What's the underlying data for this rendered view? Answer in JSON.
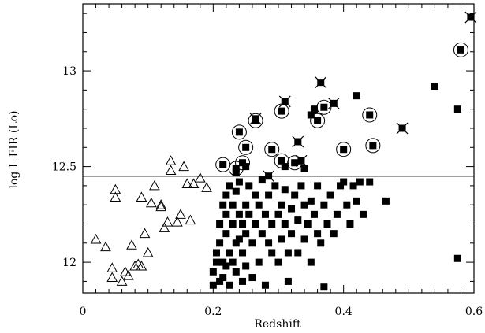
{
  "chart_data": {
    "type": "scatter",
    "xlabel": "Redshift",
    "ylabel": "log L FIR (Lo)",
    "xlim": [
      0,
      0.6
    ],
    "ylim": [
      11.84,
      13.35
    ],
    "x_ticks": [
      0,
      0.2,
      0.4,
      0.6
    ],
    "x_tick_labels": [
      "0",
      "0.2",
      "0.4",
      "0.6"
    ],
    "y_ticks": [
      12,
      12.5,
      13
    ],
    "y_tick_labels": [
      "12",
      "12.5",
      "13"
    ],
    "threshold_line": 12.45,
    "grid": false,
    "legend": "none",
    "series": [
      {
        "marker": "open-triangle",
        "points": [
          [
            0.02,
            12.12
          ],
          [
            0.035,
            12.08
          ],
          [
            0.045,
            11.97
          ],
          [
            0.045,
            11.92
          ],
          [
            0.05,
            12.34
          ],
          [
            0.05,
            12.38
          ],
          [
            0.06,
            11.9
          ],
          [
            0.065,
            11.95
          ],
          [
            0.07,
            11.93
          ],
          [
            0.075,
            12.09
          ],
          [
            0.08,
            11.98
          ],
          [
            0.085,
            11.99
          ],
          [
            0.09,
            11.98
          ],
          [
            0.09,
            12.34
          ],
          [
            0.095,
            12.15
          ],
          [
            0.1,
            12.05
          ],
          [
            0.105,
            12.31
          ],
          [
            0.11,
            12.4
          ],
          [
            0.12,
            12.3
          ],
          [
            0.12,
            12.29
          ],
          [
            0.125,
            12.18
          ],
          [
            0.13,
            12.21
          ],
          [
            0.135,
            12.53
          ],
          [
            0.135,
            12.48
          ],
          [
            0.145,
            12.21
          ],
          [
            0.15,
            12.25
          ],
          [
            0.155,
            12.5
          ],
          [
            0.16,
            12.41
          ],
          [
            0.165,
            12.22
          ],
          [
            0.17,
            12.41
          ],
          [
            0.18,
            12.44
          ],
          [
            0.19,
            12.39
          ]
        ]
      },
      {
        "marker": "filled-square",
        "points": [
          [
            0.2,
            11.88
          ],
          [
            0.2,
            11.95
          ],
          [
            0.205,
            12.0
          ],
          [
            0.205,
            12.05
          ],
          [
            0.21,
            11.9
          ],
          [
            0.21,
            12.1
          ],
          [
            0.21,
            12.2
          ],
          [
            0.215,
            12.3
          ],
          [
            0.215,
            12.0
          ],
          [
            0.215,
            11.92
          ],
          [
            0.22,
            12.15
          ],
          [
            0.22,
            12.25
          ],
          [
            0.22,
            12.35
          ],
          [
            0.22,
            11.98
          ],
          [
            0.225,
            12.4
          ],
          [
            0.225,
            12.05
          ],
          [
            0.225,
            11.88
          ],
          [
            0.23,
            12.2
          ],
          [
            0.23,
            12.3
          ],
          [
            0.23,
            12.0
          ],
          [
            0.235,
            11.95
          ],
          [
            0.235,
            12.1
          ],
          [
            0.235,
            12.37
          ],
          [
            0.24,
            12.25
          ],
          [
            0.24,
            12.12
          ],
          [
            0.24,
            12.42
          ],
          [
            0.245,
            12.2
          ],
          [
            0.245,
            11.9
          ],
          [
            0.245,
            12.05
          ],
          [
            0.25,
            12.3
          ],
          [
            0.25,
            12.15
          ],
          [
            0.25,
            11.98
          ],
          [
            0.255,
            12.25
          ],
          [
            0.255,
            12.4
          ],
          [
            0.26,
            12.1
          ],
          [
            0.26,
            11.92
          ],
          [
            0.265,
            12.2
          ],
          [
            0.265,
            12.35
          ],
          [
            0.27,
            12.0
          ],
          [
            0.27,
            12.3
          ],
          [
            0.275,
            12.15
          ],
          [
            0.275,
            12.43
          ],
          [
            0.28,
            12.25
          ],
          [
            0.28,
            11.88
          ],
          [
            0.285,
            12.1
          ],
          [
            0.285,
            12.35
          ],
          [
            0.29,
            12.2
          ],
          [
            0.29,
            12.05
          ],
          [
            0.295,
            12.4
          ],
          [
            0.3,
            12.25
          ],
          [
            0.3,
            12.0
          ],
          [
            0.305,
            12.3
          ],
          [
            0.305,
            12.12
          ],
          [
            0.31,
            12.2
          ],
          [
            0.31,
            12.38
          ],
          [
            0.315,
            12.05
          ],
          [
            0.315,
            11.9
          ],
          [
            0.32,
            12.28
          ],
          [
            0.32,
            12.15
          ],
          [
            0.325,
            12.35
          ],
          [
            0.33,
            12.22
          ],
          [
            0.33,
            12.05
          ],
          [
            0.335,
            12.4
          ],
          [
            0.34,
            12.3
          ],
          [
            0.34,
            12.12
          ],
          [
            0.345,
            12.2
          ],
          [
            0.35,
            12.32
          ],
          [
            0.35,
            12.0
          ],
          [
            0.355,
            12.25
          ],
          [
            0.36,
            12.4
          ],
          [
            0.36,
            12.15
          ],
          [
            0.365,
            12.1
          ],
          [
            0.37,
            12.3
          ],
          [
            0.37,
            11.87
          ],
          [
            0.375,
            12.2
          ],
          [
            0.38,
            12.35
          ],
          [
            0.385,
            12.15
          ],
          [
            0.39,
            12.25
          ],
          [
            0.395,
            12.4
          ],
          [
            0.4,
            12.42
          ],
          [
            0.405,
            12.3
          ],
          [
            0.41,
            12.2
          ],
          [
            0.415,
            12.4
          ],
          [
            0.42,
            12.32
          ],
          [
            0.425,
            12.42
          ],
          [
            0.43,
            12.25
          ],
          [
            0.44,
            12.42
          ],
          [
            0.465,
            12.32
          ],
          [
            0.54,
            12.92
          ],
          [
            0.575,
            12.8
          ],
          [
            0.575,
            12.02
          ],
          [
            0.42,
            12.87
          ],
          [
            0.355,
            12.8
          ],
          [
            0.35,
            12.77
          ],
          [
            0.31,
            12.5
          ],
          [
            0.25,
            12.5
          ],
          [
            0.235,
            12.47
          ],
          [
            0.34,
            12.49
          ]
        ]
      },
      {
        "marker": "circled-square",
        "points": [
          [
            0.215,
            12.51
          ],
          [
            0.235,
            12.49
          ],
          [
            0.24,
            12.68
          ],
          [
            0.245,
            12.52
          ],
          [
            0.25,
            12.6
          ],
          [
            0.265,
            12.74
          ],
          [
            0.29,
            12.59
          ],
          [
            0.305,
            12.53
          ],
          [
            0.305,
            12.79
          ],
          [
            0.325,
            12.52
          ],
          [
            0.36,
            12.74
          ],
          [
            0.37,
            12.81
          ],
          [
            0.4,
            12.59
          ],
          [
            0.44,
            12.77
          ],
          [
            0.445,
            12.61
          ],
          [
            0.58,
            13.11
          ]
        ]
      },
      {
        "marker": "crossed-square",
        "points": [
          [
            0.33,
            12.63
          ],
          [
            0.335,
            12.53
          ],
          [
            0.365,
            12.94
          ],
          [
            0.31,
            12.84
          ],
          [
            0.385,
            12.83
          ],
          [
            0.49,
            12.7
          ],
          [
            0.595,
            13.28
          ],
          [
            0.285,
            12.45
          ],
          [
            0.265,
            12.75
          ]
        ]
      }
    ]
  }
}
